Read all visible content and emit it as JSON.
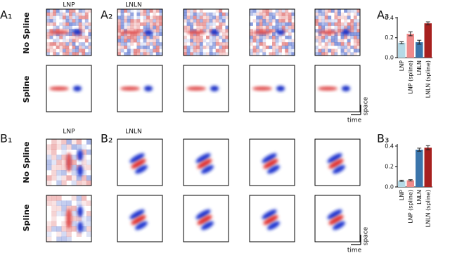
{
  "figure": {
    "panels": [
      "A₁",
      "A₂",
      "A₃",
      "B₁",
      "B₂",
      "B₃"
    ],
    "column_titles": [
      "LNP",
      "LNLN",
      "LNP",
      "LNLN"
    ],
    "row_labels": [
      "No Spline",
      "Spline",
      "No Spline",
      "Spline"
    ],
    "scale_labels": [
      "space",
      "time",
      "space",
      "time"
    ]
  },
  "chart_data": [
    {
      "type": "bar",
      "categories": [
        "LNP",
        "LNP (spline)",
        "LNLN",
        "LNLN (spline)"
      ],
      "values": [
        0.15,
        0.24,
        0.155,
        0.345
      ],
      "errors": [
        0.01,
        0.02,
        0.02,
        0.015
      ],
      "colors": [
        "#b5d9e6",
        "#ef8a8a",
        "#3b75ab",
        "#a7201f"
      ],
      "ylim": [
        0,
        0.41
      ],
      "yticks": [
        {
          "value": 0,
          "label": "0.0"
        },
        {
          "value": 0.2,
          "label": "0.2"
        },
        {
          "value": 0.4,
          "label": "0.4"
        }
      ]
    },
    {
      "type": "bar",
      "categories": [
        "LNP",
        "LNP (spline)",
        "LNLN",
        "LNLN (spline)"
      ],
      "values": [
        0.06,
        0.065,
        0.365,
        0.385
      ],
      "errors": [
        0.006,
        0.006,
        0.015,
        0.02
      ],
      "colors": [
        "#b5d9e6",
        "#ef8a8a",
        "#3b75ab",
        "#a7201f"
      ],
      "ylim": [
        0,
        0.42
      ],
      "yticks": [
        {
          "value": 0,
          "label": "0.0"
        },
        {
          "value": 0.2,
          "label": "0.2"
        },
        {
          "value": 0.4,
          "label": "0.4"
        }
      ]
    }
  ]
}
